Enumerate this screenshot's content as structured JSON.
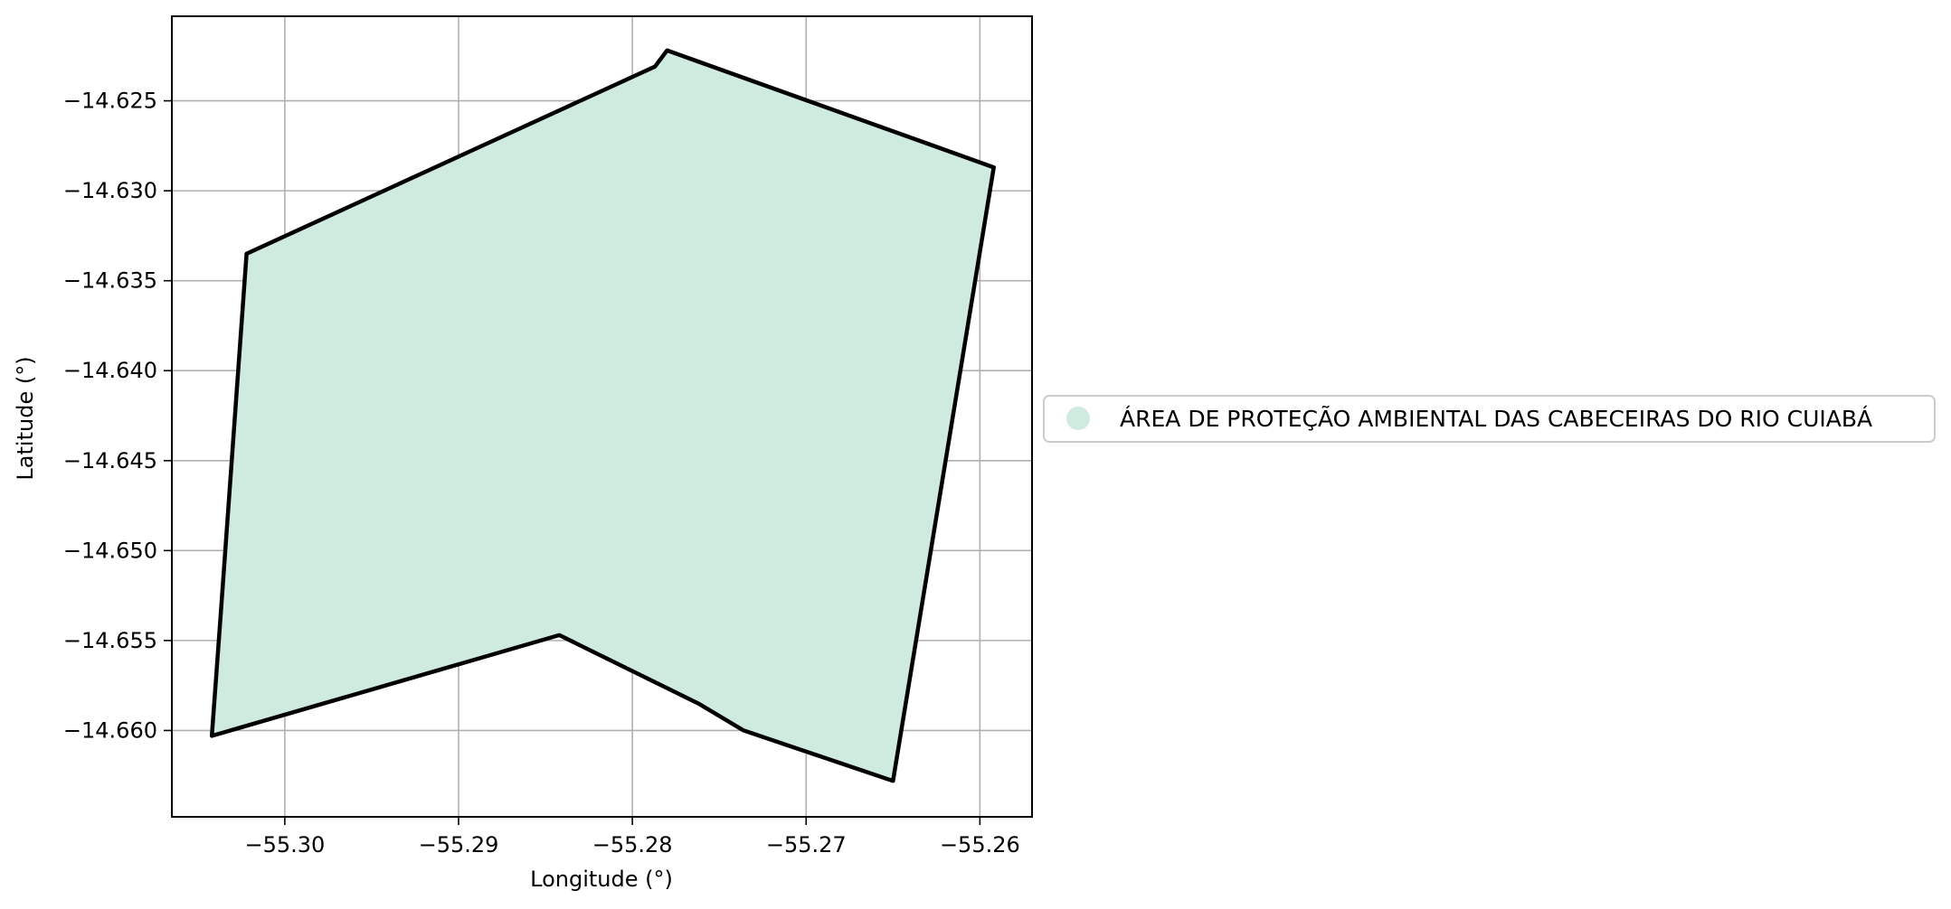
{
  "chart_data": {
    "type": "map",
    "xlabel": "Longitude (°)",
    "ylabel": "Latitude (°)",
    "xlim": [
      -55.3065,
      -55.257
    ],
    "ylim": [
      -14.6648,
      -14.6203
    ],
    "grid": true,
    "legend_placement": "right",
    "x_ticks": [
      {
        "value": -55.3,
        "label": "−55.30"
      },
      {
        "value": -55.29,
        "label": "−55.29"
      },
      {
        "value": -55.28,
        "label": "−55.28"
      },
      {
        "value": -55.27,
        "label": "−55.27"
      },
      {
        "value": -55.26,
        "label": "−55.26"
      }
    ],
    "y_ticks": [
      {
        "value": -14.625,
        "label": "−14.625"
      },
      {
        "value": -14.63,
        "label": "−14.630"
      },
      {
        "value": -14.635,
        "label": "−14.635"
      },
      {
        "value": -14.64,
        "label": "−14.640"
      },
      {
        "value": -14.645,
        "label": "−14.645"
      },
      {
        "value": -14.65,
        "label": "−14.650"
      },
      {
        "value": -14.655,
        "label": "−14.655"
      },
      {
        "value": -14.66,
        "label": "−14.660"
      }
    ],
    "series": [
      {
        "name": "ÁREA DE PROTEÇÃO AMBIENTAL DAS CABECEIRAS DO RIO CUIABÁ",
        "fill_color": "#cfeadf",
        "edge_color": "#000000",
        "polygon": [
          [
            -55.3022,
            -14.6335
          ],
          [
            -55.2787,
            -14.6231
          ],
          [
            -55.278,
            -14.6222
          ],
          [
            -55.2592,
            -14.6287
          ],
          [
            -55.265,
            -14.6628
          ],
          [
            -55.2736,
            -14.66
          ],
          [
            -55.2762,
            -14.6585
          ],
          [
            -55.2842,
            -14.6547
          ],
          [
            -55.3042,
            -14.6603
          ],
          [
            -55.3037,
            -14.6537
          ],
          [
            -55.3022,
            -14.6335
          ]
        ]
      }
    ]
  }
}
